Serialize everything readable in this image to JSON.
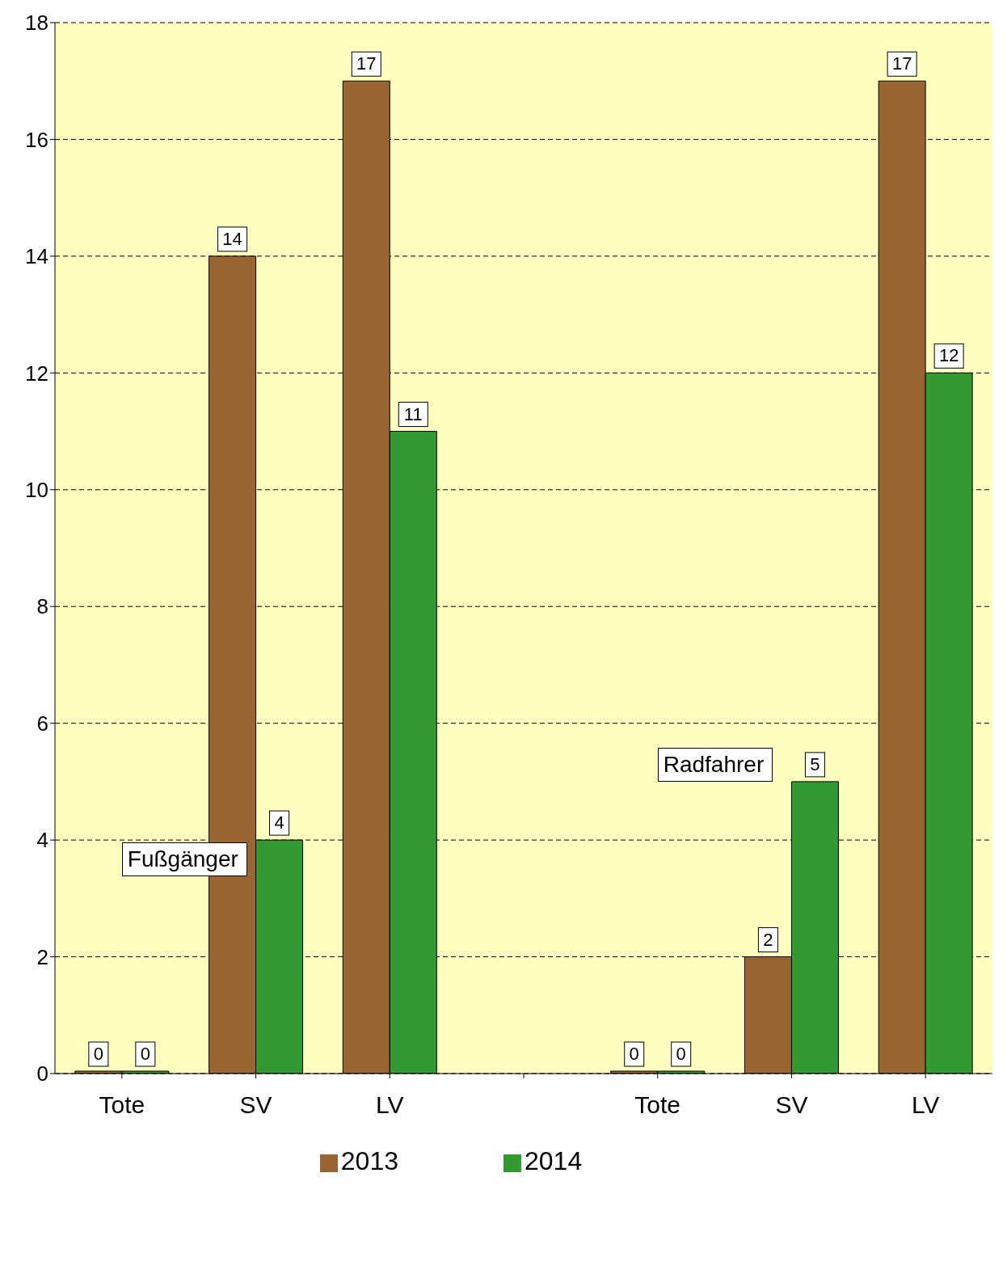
{
  "chart_data": {
    "type": "bar",
    "categories": [
      "Tote",
      "SV",
      "LV",
      null,
      "Tote",
      "SV",
      "LV"
    ],
    "series": [
      {
        "name": "2013",
        "color": "#996633",
        "values": [
          0,
          14,
          17,
          null,
          0,
          2,
          17
        ]
      },
      {
        "name": "2014",
        "color": "#339933",
        "values": [
          0,
          4,
          11,
          null,
          0,
          5,
          12
        ]
      }
    ],
    "ylim": [
      0,
      18
    ],
    "yticks": [
      0,
      2,
      4,
      6,
      8,
      10,
      12,
      14,
      16,
      18
    ],
    "grid": "y",
    "legend": "bottom",
    "data_labels": true,
    "annotations": [
      "Fußgänger",
      "Radfahrer"
    ]
  }
}
